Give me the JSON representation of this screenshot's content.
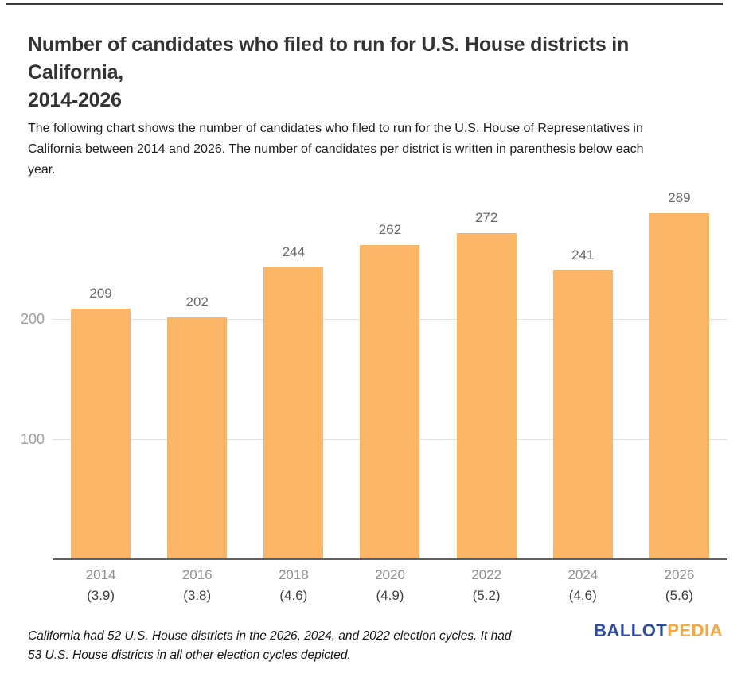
{
  "page": {
    "title_lines": [
      "Number of candidates who filed to run for U.S. House districts in California,",
      "2014-2026"
    ],
    "subtitle_lines": [
      "The following chart shows the number of candidates who filed to run for the U.S. House of Representatives in",
      "California between 2014 and 2026. The number of candidates per district is written in parenthesis below each",
      "year."
    ],
    "footnote_lines": [
      "California had 52 U.S. House districts in the 2026, 2024, and 2022 election cycles. It had",
      "53 U.S. House districts in all other election cycles depicted."
    ],
    "logo": {
      "part1": "BALLOT",
      "part2": "PEDIA",
      "part1_color": "#2b4aa5",
      "part2_color": "#f9a63c"
    }
  },
  "chart_data": {
    "type": "bar",
    "title": "Number of candidates who filed to run for U.S. House districts in California, 2014-2026",
    "categories": [
      "2014",
      "2016",
      "2018",
      "2020",
      "2022",
      "2024",
      "2026"
    ],
    "values": [
      209,
      202,
      244,
      262,
      272,
      241,
      289
    ],
    "candidates_per_district_labels": [
      "(3.9)",
      "(3.8)",
      "(4.6)",
      "(4.9)",
      "(5.2)",
      "(4.6)",
      "(5.6)"
    ],
    "xlabel": "",
    "ylabel": "",
    "y_ticks": [
      100,
      200
    ],
    "ylim": [
      0,
      310
    ],
    "grid": true,
    "legend": false,
    "value_labels_shown": true,
    "bar_color": "#FBB567",
    "gridline_color": "#e3e3e3",
    "axis_color": "#606060"
  }
}
